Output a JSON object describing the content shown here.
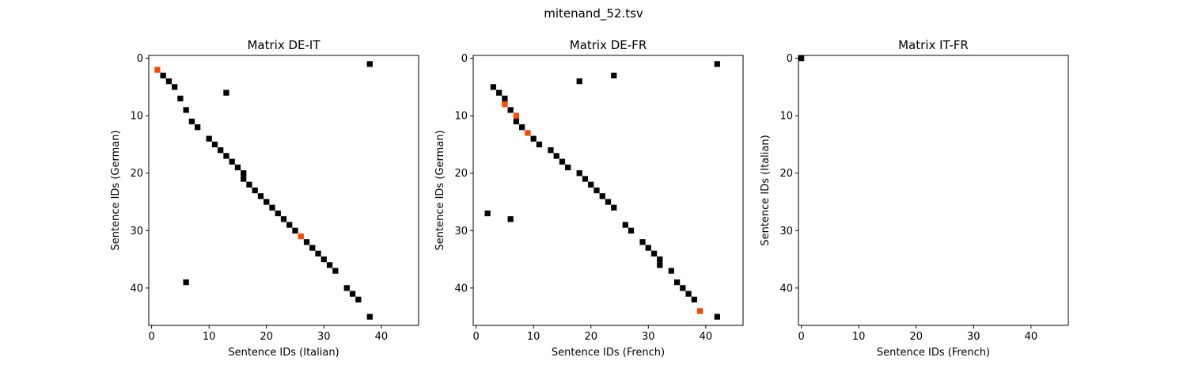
{
  "figure": {
    "suptitle": "mitenand_52.tsv"
  },
  "colors": {
    "match": "#000000",
    "highlight": "#ff4500",
    "frame": "#000000"
  },
  "chart_data": [
    {
      "type": "heatmap",
      "title": "Matrix DE-IT",
      "xlabel": "Sentence IDs (Italian)",
      "ylabel": "Sentence IDs (German)",
      "xlim": [
        -0.5,
        46.5
      ],
      "ylim": [
        46.5,
        -0.5
      ],
      "xticks": [
        0,
        10,
        20,
        30,
        40
      ],
      "yticks": [
        0,
        10,
        20,
        30,
        40
      ],
      "grid": false,
      "cells": [
        {
          "x": 38,
          "y": 1,
          "value": "match"
        },
        {
          "x": 1,
          "y": 2,
          "value": "highlight"
        },
        {
          "x": 2,
          "y": 3,
          "value": "match"
        },
        {
          "x": 3,
          "y": 4,
          "value": "match"
        },
        {
          "x": 4,
          "y": 5,
          "value": "match"
        },
        {
          "x": 13,
          "y": 6,
          "value": "match"
        },
        {
          "x": 5,
          "y": 7,
          "value": "match"
        },
        {
          "x": 6,
          "y": 9,
          "value": "match"
        },
        {
          "x": 7,
          "y": 11,
          "value": "match"
        },
        {
          "x": 8,
          "y": 12,
          "value": "match"
        },
        {
          "x": 10,
          "y": 14,
          "value": "match"
        },
        {
          "x": 11,
          "y": 15,
          "value": "match"
        },
        {
          "x": 12,
          "y": 16,
          "value": "match"
        },
        {
          "x": 13,
          "y": 17,
          "value": "match"
        },
        {
          "x": 14,
          "y": 18,
          "value": "match"
        },
        {
          "x": 15,
          "y": 19,
          "value": "match"
        },
        {
          "x": 16,
          "y": 20,
          "value": "match"
        },
        {
          "x": 16,
          "y": 21,
          "value": "match"
        },
        {
          "x": 17,
          "y": 22,
          "value": "match"
        },
        {
          "x": 18,
          "y": 23,
          "value": "match"
        },
        {
          "x": 19,
          "y": 24,
          "value": "match"
        },
        {
          "x": 20,
          "y": 25,
          "value": "match"
        },
        {
          "x": 21,
          "y": 26,
          "value": "match"
        },
        {
          "x": 22,
          "y": 27,
          "value": "match"
        },
        {
          "x": 23,
          "y": 28,
          "value": "match"
        },
        {
          "x": 24,
          "y": 29,
          "value": "match"
        },
        {
          "x": 25,
          "y": 30,
          "value": "match"
        },
        {
          "x": 26,
          "y": 31,
          "value": "highlight"
        },
        {
          "x": 27,
          "y": 32,
          "value": "match"
        },
        {
          "x": 28,
          "y": 33,
          "value": "match"
        },
        {
          "x": 29,
          "y": 34,
          "value": "match"
        },
        {
          "x": 30,
          "y": 35,
          "value": "match"
        },
        {
          "x": 31,
          "y": 36,
          "value": "match"
        },
        {
          "x": 32,
          "y": 37,
          "value": "match"
        },
        {
          "x": 6,
          "y": 39,
          "value": "match"
        },
        {
          "x": 34,
          "y": 40,
          "value": "match"
        },
        {
          "x": 35,
          "y": 41,
          "value": "match"
        },
        {
          "x": 36,
          "y": 42,
          "value": "match"
        },
        {
          "x": 38,
          "y": 45,
          "value": "match"
        }
      ]
    },
    {
      "type": "heatmap",
      "title": "Matrix DE-FR",
      "xlabel": "Sentence IDs (French)",
      "ylabel": "Sentence IDs (German)",
      "xlim": [
        -0.5,
        46.5
      ],
      "ylim": [
        46.5,
        -0.5
      ],
      "xticks": [
        0,
        10,
        20,
        30,
        40
      ],
      "yticks": [
        0,
        10,
        20,
        30,
        40
      ],
      "grid": false,
      "cells": [
        {
          "x": 42,
          "y": 1,
          "value": "match"
        },
        {
          "x": 24,
          "y": 3,
          "value": "match"
        },
        {
          "x": 18,
          "y": 4,
          "value": "match"
        },
        {
          "x": 3,
          "y": 5,
          "value": "match"
        },
        {
          "x": 4,
          "y": 6,
          "value": "match"
        },
        {
          "x": 5,
          "y": 7,
          "value": "match"
        },
        {
          "x": 5,
          "y": 8,
          "value": "highlight"
        },
        {
          "x": 6,
          "y": 9,
          "value": "match"
        },
        {
          "x": 7,
          "y": 10,
          "value": "highlight"
        },
        {
          "x": 7,
          "y": 11,
          "value": "match"
        },
        {
          "x": 8,
          "y": 12,
          "value": "match"
        },
        {
          "x": 9,
          "y": 13,
          "value": "highlight"
        },
        {
          "x": 10,
          "y": 14,
          "value": "match"
        },
        {
          "x": 11,
          "y": 15,
          "value": "match"
        },
        {
          "x": 13,
          "y": 16,
          "value": "match"
        },
        {
          "x": 14,
          "y": 17,
          "value": "match"
        },
        {
          "x": 15,
          "y": 18,
          "value": "match"
        },
        {
          "x": 16,
          "y": 19,
          "value": "match"
        },
        {
          "x": 18,
          "y": 20,
          "value": "match"
        },
        {
          "x": 19,
          "y": 21,
          "value": "match"
        },
        {
          "x": 20,
          "y": 22,
          "value": "match"
        },
        {
          "x": 21,
          "y": 23,
          "value": "match"
        },
        {
          "x": 22,
          "y": 24,
          "value": "match"
        },
        {
          "x": 23,
          "y": 25,
          "value": "match"
        },
        {
          "x": 24,
          "y": 26,
          "value": "match"
        },
        {
          "x": 2,
          "y": 27,
          "value": "match"
        },
        {
          "x": 6,
          "y": 28,
          "value": "match"
        },
        {
          "x": 26,
          "y": 29,
          "value": "match"
        },
        {
          "x": 27,
          "y": 30,
          "value": "match"
        },
        {
          "x": 29,
          "y": 32,
          "value": "match"
        },
        {
          "x": 30,
          "y": 33,
          "value": "match"
        },
        {
          "x": 31,
          "y": 34,
          "value": "match"
        },
        {
          "x": 32,
          "y": 35,
          "value": "match"
        },
        {
          "x": 32,
          "y": 36,
          "value": "match"
        },
        {
          "x": 34,
          "y": 37,
          "value": "match"
        },
        {
          "x": 35,
          "y": 39,
          "value": "match"
        },
        {
          "x": 36,
          "y": 40,
          "value": "match"
        },
        {
          "x": 37,
          "y": 41,
          "value": "match"
        },
        {
          "x": 38,
          "y": 42,
          "value": "match"
        },
        {
          "x": 39,
          "y": 44,
          "value": "highlight"
        },
        {
          "x": 42,
          "y": 45,
          "value": "match"
        }
      ]
    },
    {
      "type": "heatmap",
      "title": "Matrix IT-FR",
      "xlabel": "Sentence IDs (French)",
      "ylabel": "Sentence IDs (Italian)",
      "xlim": [
        -0.5,
        46.5
      ],
      "ylim": [
        46.5,
        -0.5
      ],
      "xticks": [
        0,
        10,
        20,
        30,
        40
      ],
      "yticks": [
        0,
        10,
        20,
        30,
        40
      ],
      "grid": false,
      "cells": [
        {
          "x": 0,
          "y": 0,
          "value": "match"
        }
      ]
    }
  ]
}
